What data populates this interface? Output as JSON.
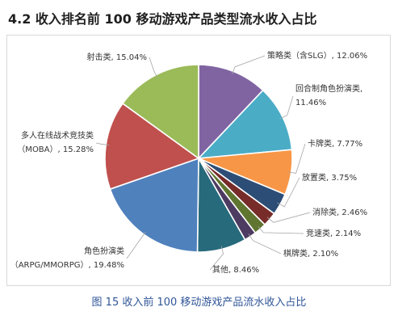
{
  "section_title": "4.2 收入排名前 100 移动游戏产品类型流水收入占比",
  "figure_caption": "图 15 收入前 100 移动游戏产品流水收入占比",
  "chart_data": {
    "type": "pie",
    "title": "",
    "unit": "%",
    "slices": [
      {
        "label": "策略类（含SLG）",
        "value": 12.06,
        "value_text": "12.06%",
        "color": "#8064a2",
        "label_lines": [
          "策略类（含SLG）, 12.06%"
        ]
      },
      {
        "label": "回合制角色扮演类",
        "value": 11.46,
        "value_text": "11.46%",
        "color": "#4bacc6",
        "label_lines": [
          "回合制角色扮演类,",
          "11.46%"
        ]
      },
      {
        "label": "卡牌类",
        "value": 7.77,
        "value_text": "7.77%",
        "color": "#f79646",
        "label_lines": [
          "卡牌类, 7.77%"
        ]
      },
      {
        "label": "放置类",
        "value": 3.75,
        "value_text": "3.75%",
        "color": "#2c4d75",
        "label_lines": [
          "放置类, 3.75%"
        ]
      },
      {
        "label": "消除类",
        "value": 2.46,
        "value_text": "2.46%",
        "color": "#772c2a",
        "label_lines": [
          "消除类, 2.46%"
        ]
      },
      {
        "label": "竞速类",
        "value": 2.14,
        "value_text": "2.14%",
        "color": "#5f7530",
        "label_lines": [
          "竞速类, 2.14%"
        ]
      },
      {
        "label": "棋牌类",
        "value": 2.1,
        "value_text": "2.10%",
        "color": "#4d3b62",
        "label_lines": [
          "棋牌类, 2.10%"
        ]
      },
      {
        "label": "其他",
        "value": 8.46,
        "value_text": "8.46%",
        "color": "#276a7c",
        "label_lines": [
          "其他, 8.46%"
        ]
      },
      {
        "label": "角色扮演类（ARPG/MMORPG）",
        "value": 19.48,
        "value_text": "19.48%",
        "color": "#4f81bd",
        "label_lines": [
          "角色扮演类",
          "（ARPG/MMORPG）, 19.48%"
        ]
      },
      {
        "label": "多人在线战术竞技类（MOBA）",
        "value": 15.28,
        "value_text": "15.28%",
        "color": "#c0504d",
        "label_lines": [
          "多人在线战术竞技类",
          "（MOBA）, 15.28%"
        ]
      },
      {
        "label": "射击类",
        "value": 15.04,
        "value_text": "15.04%",
        "color": "#9bbb59",
        "label_lines": [
          "射击类, 15.04%"
        ]
      }
    ]
  }
}
